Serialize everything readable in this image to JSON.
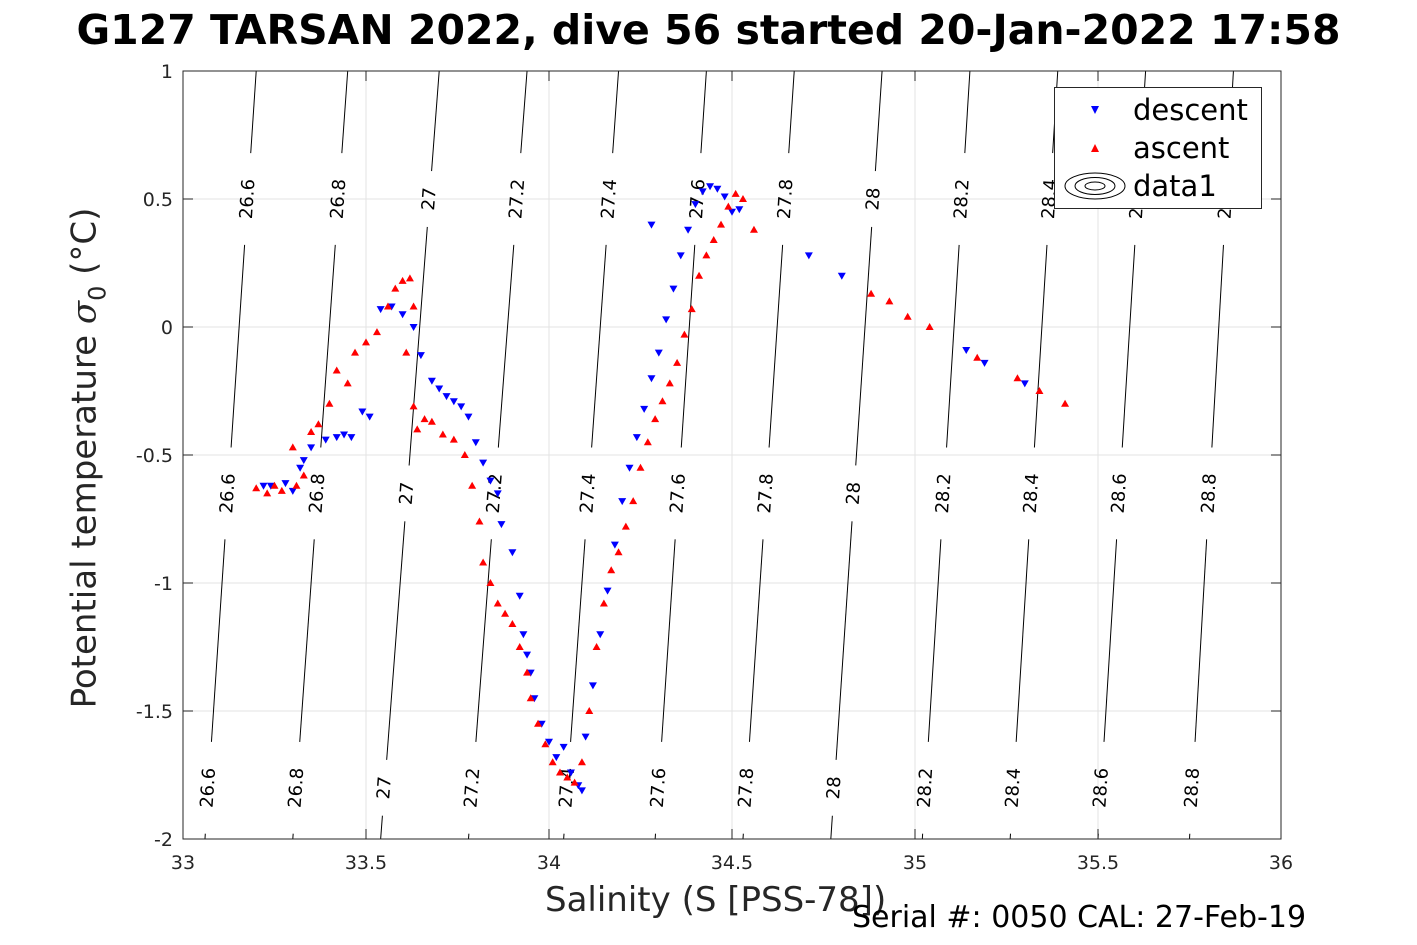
{
  "title": "G127 TARSAN 2022, dive 56 started 20-Jan-2022 17:58",
  "footer": "Serial #: 0050  CAL: 27-Feb-19",
  "chart_data": {
    "type": "scatter",
    "xlabel": "Salinity (S [PSS-78])",
    "ylabel": {
      "main": "Potential temperature ",
      "symbol": "σ",
      "sub": "0",
      "unit": " (°C)"
    },
    "xlim": [
      33,
      36
    ],
    "ylim": [
      -2,
      1
    ],
    "xticks": [
      33,
      33.5,
      34,
      34.5,
      35,
      35.5,
      36
    ],
    "xtick_labels": [
      "33",
      "33.5",
      "34",
      "34.5",
      "35",
      "35.5",
      "36"
    ],
    "yticks": [
      -2,
      -1.5,
      -1,
      -0.5,
      0,
      0.5,
      1
    ],
    "ytick_labels": [
      "-2",
      "-1.5",
      "-1",
      "-0.5",
      "0",
      "0.5",
      "1"
    ],
    "grid": true,
    "legend_position": "top-right",
    "colors": {
      "descent": "#0000ff",
      "ascent": "#ff0000",
      "contour": "#000000"
    },
    "density_contours": {
      "levels": [
        "26.6",
        "26.8",
        "27",
        "27.2",
        "27.4",
        "27.6",
        "27.8",
        "28",
        "28.2",
        "28.4",
        "28.6",
        "28.8"
      ],
      "s_at_top": [
        33.2,
        33.45,
        33.7,
        33.94,
        34.19,
        34.43,
        34.67,
        34.91,
        35.15,
        35.39,
        35.63,
        35.87
      ],
      "s_at_bottom": [
        33.06,
        33.3,
        33.54,
        33.78,
        34.04,
        34.29,
        34.53,
        34.77,
        35.02,
        35.26,
        35.5,
        35.75
      ]
    },
    "series": [
      {
        "name": "descent",
        "marker": "triangle-down",
        "x": [
          33.22,
          33.24,
          33.28,
          33.3,
          33.32,
          33.33,
          33.35,
          33.39,
          33.42,
          33.44,
          33.46,
          33.49,
          33.51,
          33.54,
          33.57,
          33.6,
          33.63,
          33.65,
          33.68,
          33.7,
          33.72,
          33.74,
          33.76,
          33.78,
          33.8,
          33.82,
          33.84,
          33.86,
          33.87,
          33.9,
          33.92,
          33.93,
          33.94,
          33.95,
          33.96,
          33.98,
          34.0,
          34.02,
          34.04,
          34.06,
          34.08,
          34.09,
          34.1,
          34.12,
          34.14,
          34.16,
          34.18,
          34.2,
          34.22,
          34.24,
          34.26,
          34.28,
          34.3,
          34.32,
          34.34,
          34.36,
          34.38,
          34.4,
          34.42,
          34.44,
          34.46,
          34.48,
          34.5,
          34.52,
          34.28,
          34.71,
          34.8,
          35.14,
          35.19,
          35.3
        ],
        "y": [
          -0.62,
          -0.62,
          -0.61,
          -0.64,
          -0.55,
          -0.52,
          -0.47,
          -0.44,
          -0.43,
          -0.42,
          -0.43,
          -0.33,
          -0.35,
          0.07,
          0.08,
          0.05,
          0.0,
          -0.11,
          -0.21,
          -0.24,
          -0.27,
          -0.29,
          -0.31,
          -0.35,
          -0.45,
          -0.53,
          -0.6,
          -0.65,
          -0.77,
          -0.88,
          -1.05,
          -1.2,
          -1.28,
          -1.35,
          -1.45,
          -1.55,
          -1.62,
          -1.68,
          -1.64,
          -1.74,
          -1.79,
          -1.81,
          -1.6,
          -1.4,
          -1.2,
          -1.03,
          -0.85,
          -0.68,
          -0.55,
          -0.43,
          -0.32,
          -0.2,
          -0.1,
          0.03,
          0.15,
          0.28,
          0.38,
          0.48,
          0.53,
          0.55,
          0.54,
          0.51,
          0.45,
          0.46,
          0.4,
          0.28,
          0.2,
          -0.09,
          -0.14,
          -0.22
        ]
      },
      {
        "name": "ascent",
        "marker": "triangle-up",
        "x": [
          33.2,
          33.23,
          33.25,
          33.27,
          33.3,
          33.31,
          33.33,
          33.35,
          33.37,
          33.4,
          33.42,
          33.45,
          33.47,
          33.5,
          33.53,
          33.56,
          33.58,
          33.6,
          33.62,
          33.63,
          33.61,
          33.63,
          33.64,
          33.66,
          33.68,
          33.71,
          33.74,
          33.77,
          33.79,
          33.81,
          33.82,
          33.84,
          33.86,
          33.88,
          33.9,
          33.92,
          33.94,
          33.95,
          33.97,
          33.99,
          34.01,
          34.03,
          34.05,
          34.07,
          34.09,
          34.11,
          34.13,
          34.15,
          34.17,
          34.19,
          34.21,
          34.23,
          34.25,
          34.27,
          34.29,
          34.31,
          34.33,
          34.35,
          34.37,
          34.39,
          34.41,
          34.43,
          34.45,
          34.47,
          34.49,
          34.51,
          34.53,
          34.56,
          34.88,
          34.93,
          34.98,
          35.04,
          35.17,
          35.28,
          35.34,
          35.41
        ],
        "y": [
          -0.63,
          -0.65,
          -0.62,
          -0.64,
          -0.47,
          -0.62,
          -0.58,
          -0.41,
          -0.38,
          -0.3,
          -0.17,
          -0.22,
          -0.1,
          -0.06,
          -0.02,
          0.08,
          0.15,
          0.18,
          0.19,
          0.08,
          -0.1,
          -0.31,
          -0.4,
          -0.36,
          -0.37,
          -0.42,
          -0.44,
          -0.5,
          -0.62,
          -0.76,
          -0.92,
          -1.0,
          -1.08,
          -1.12,
          -1.16,
          -1.25,
          -1.35,
          -1.45,
          -1.55,
          -1.63,
          -1.7,
          -1.74,
          -1.76,
          -1.78,
          -1.7,
          -1.5,
          -1.25,
          -1.08,
          -0.95,
          -0.88,
          -0.78,
          -0.68,
          -0.55,
          -0.45,
          -0.36,
          -0.29,
          -0.22,
          -0.14,
          -0.03,
          0.07,
          0.2,
          0.28,
          0.34,
          0.4,
          0.47,
          0.52,
          0.5,
          0.38,
          0.13,
          0.1,
          0.04,
          0.0,
          -0.12,
          -0.2,
          -0.25,
          -0.3
        ]
      }
    ],
    "legend": [
      {
        "label": "descent",
        "marker": "triangle-down"
      },
      {
        "label": "ascent",
        "marker": "triangle-up"
      },
      {
        "label": "data1",
        "marker": "contour"
      }
    ]
  }
}
